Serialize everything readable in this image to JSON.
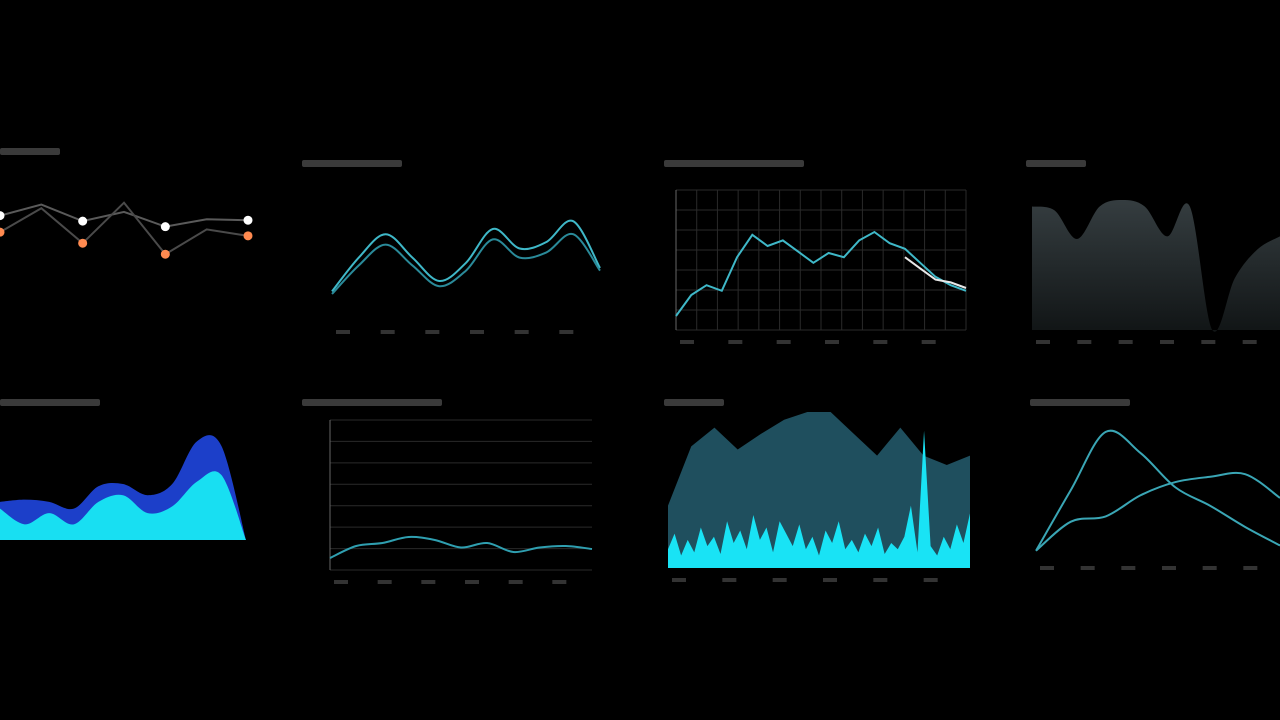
{
  "chart_data": [
    {
      "type": "line",
      "ylim": [
        0,
        100
      ],
      "smooth": false,
      "series": [
        {
          "color": "#5a5a5a",
          "marker": "#ffffff",
          "values": [
            70,
            82,
            64,
            74,
            58,
            66,
            65
          ]
        },
        {
          "color": "#4a4a4a",
          "marker": "#ff8a50",
          "values": [
            52,
            78,
            40,
            84,
            28,
            55,
            48
          ]
        }
      ]
    },
    {
      "type": "line",
      "ylim": [
        0,
        100
      ],
      "smooth": true,
      "series": [
        {
          "color": "#3fb8c8",
          "values": [
            22,
            48,
            66,
            48,
            30,
            44,
            70,
            55,
            60,
            76,
            40
          ]
        },
        {
          "color": "#2a8a99",
          "values": [
            20,
            42,
            58,
            42,
            26,
            38,
            62,
            48,
            52,
            66,
            38
          ]
        }
      ]
    },
    {
      "type": "line",
      "ylim": [
        0,
        100
      ],
      "smooth": false,
      "grid": true,
      "series": [
        {
          "color": "#3fb8c8",
          "values": [
            10,
            25,
            32,
            28,
            52,
            68,
            60,
            64,
            56,
            48,
            55,
            52,
            64,
            70,
            62,
            58,
            48,
            38,
            32,
            28
          ]
        },
        {
          "color": "#e8e8e8",
          "values": [
            null,
            null,
            null,
            null,
            null,
            null,
            null,
            null,
            null,
            null,
            null,
            null,
            null,
            null,
            null,
            52,
            44,
            36,
            34,
            30
          ]
        }
      ]
    },
    {
      "type": "area",
      "ylim": [
        0,
        100
      ],
      "smooth": true,
      "series": [
        {
          "color": "url(#grey-fade)",
          "values": [
            95,
            92,
            70,
            95,
            100,
            95,
            72,
            95,
            0,
            40,
            62,
            72
          ]
        }
      ]
    },
    {
      "type": "area",
      "ylim": [
        0,
        100
      ],
      "smooth": true,
      "stacked": true,
      "series": [
        {
          "color": "#18dff2",
          "values": [
            28,
            14,
            24,
            14,
            34,
            40,
            24,
            30,
            52,
            58,
            0
          ]
        },
        {
          "color": "#1c3fc9",
          "values": [
            6,
            22,
            10,
            14,
            14,
            10,
            16,
            20,
            36,
            26,
            0
          ]
        }
      ]
    },
    {
      "type": "line",
      "ylim": [
        0,
        100
      ],
      "smooth": true,
      "grid": true,
      "series": [
        {
          "color": "#2f9fb0",
          "values": [
            8,
            16,
            18,
            22,
            20,
            15,
            18,
            12,
            15,
            16,
            14
          ]
        }
      ]
    },
    {
      "type": "area",
      "ylim": [
        0,
        100
      ],
      "smooth": false,
      "series": [
        {
          "color": "#1f4f5e",
          "values": [
            40,
            78,
            90,
            76,
            86,
            95,
            100,
            100,
            86,
            72,
            90,
            72,
            66,
            72
          ]
        },
        {
          "color": "#19e3f5",
          "values": [
            12,
            22,
            8,
            18,
            10,
            26,
            14,
            20,
            9,
            30,
            16,
            24,
            12,
            34,
            18,
            26,
            10,
            30,
            22,
            14,
            28,
            12,
            20,
            8,
            24,
            16,
            30,
            12,
            18,
            10,
            22,
            14,
            26,
            9,
            16,
            12,
            20,
            40,
            10,
            88,
            14,
            8,
            20,
            12,
            28,
            16,
            35
          ]
        }
      ]
    },
    {
      "type": "line",
      "ylim": [
        0,
        100
      ],
      "smooth": true,
      "series": [
        {
          "color": "#3aa6b5",
          "values": [
            4,
            50,
            94,
            78,
            52,
            38,
            22,
            8
          ]
        },
        {
          "color": "#3aa6b5",
          "values": [
            4,
            26,
            30,
            46,
            56,
            60,
            62,
            44
          ]
        }
      ]
    }
  ]
}
